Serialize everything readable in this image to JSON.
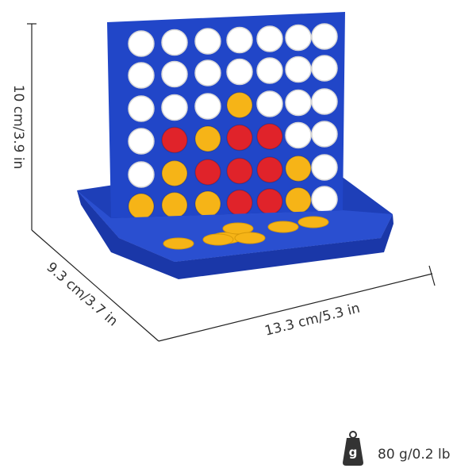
{
  "dimensions": {
    "height": "10 cm/3.9 in",
    "depth": "9.3 cm/3.7 in",
    "width": "13.3 cm/5.3 in"
  },
  "weight": {
    "icon": "g",
    "label": "80 g/0.2 lb"
  }
}
